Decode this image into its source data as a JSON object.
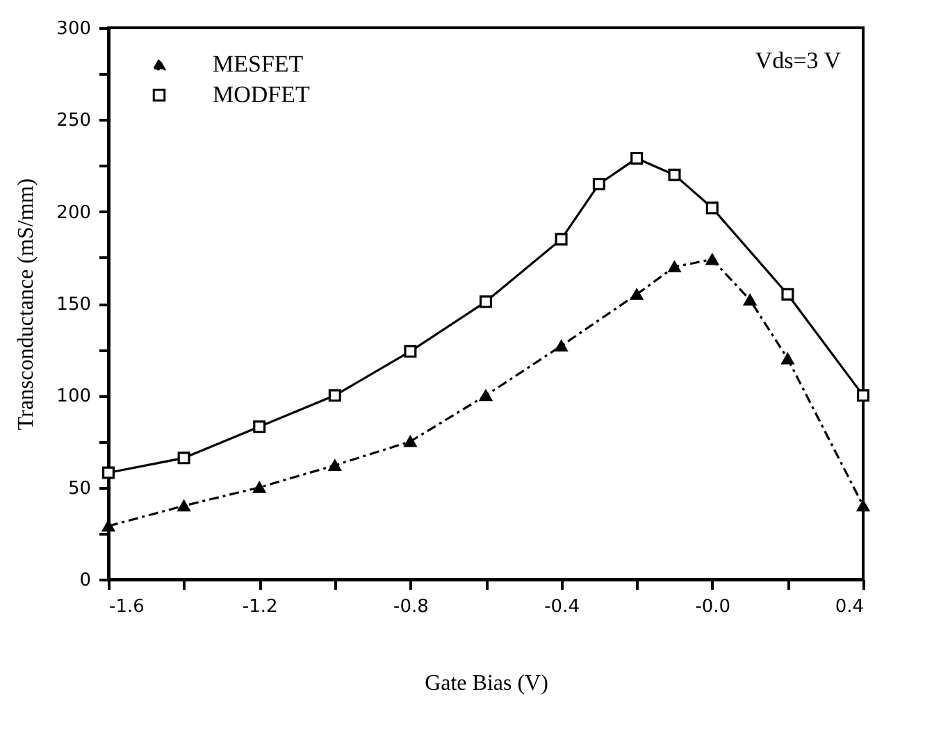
{
  "chart_data": {
    "type": "line",
    "xlabel": "Gate Bias (V)",
    "ylabel": "Transconductance (mS/mm)",
    "annotations": [
      "Vds=3 V"
    ],
    "xlim": [
      -1.6,
      0.4
    ],
    "xticks": [
      {
        "value": -1.6,
        "label": "-1.6"
      },
      {
        "value": -1.4,
        "label": null
      },
      {
        "value": -1.2,
        "label": "-1.2"
      },
      {
        "value": -1.0,
        "label": null
      },
      {
        "value": -0.8,
        "label": "-0.8"
      },
      {
        "value": -0.6,
        "label": null
      },
      {
        "value": -0.4,
        "label": "-0.4"
      },
      {
        "value": -0.2,
        "label": null
      },
      {
        "value": 0,
        "label": "-0.0"
      },
      {
        "value": 0.2,
        "label": null
      },
      {
        "value": 0.4,
        "label": "0.4"
      }
    ],
    "ylim": [
      0,
      300
    ],
    "yticks": [
      0,
      {
        "value": 25,
        "label": null
      },
      50,
      {
        "value": 75,
        "label": null
      },
      100,
      {
        "value": 125,
        "label": null
      },
      150,
      {
        "value": 175,
        "label": null
      },
      200,
      {
        "value": 225,
        "label": null
      },
      250,
      {
        "value": 275,
        "label": null
      },
      300
    ],
    "grid": false,
    "legend": "top left",
    "series": [
      {
        "name": "MESFET",
        "color": "#000000",
        "marker": "triangle",
        "line_style": "dashed",
        "x": [
          -1.6,
          -1.4,
          -1.2,
          -1.0,
          -0.8,
          -0.6,
          -0.4,
          -0.2,
          -0.1,
          0,
          0.1,
          0.2,
          0.4
        ],
        "values": [
          29,
          40,
          50,
          62,
          75,
          100,
          127,
          155,
          170,
          174,
          152,
          120,
          40
        ]
      },
      {
        "name": "MODFET",
        "color": "#000000",
        "marker": "square",
        "line_style": "solid",
        "x": [
          -1.6,
          -1.4,
          -1.2,
          -1.0,
          -0.8,
          -0.6,
          -0.4,
          -0.3,
          -0.2,
          -0.1,
          0,
          0.2,
          0.4
        ],
        "values": [
          58,
          66,
          83,
          100,
          124,
          151,
          185,
          215,
          229,
          220,
          202,
          155,
          100
        ]
      }
    ]
  }
}
